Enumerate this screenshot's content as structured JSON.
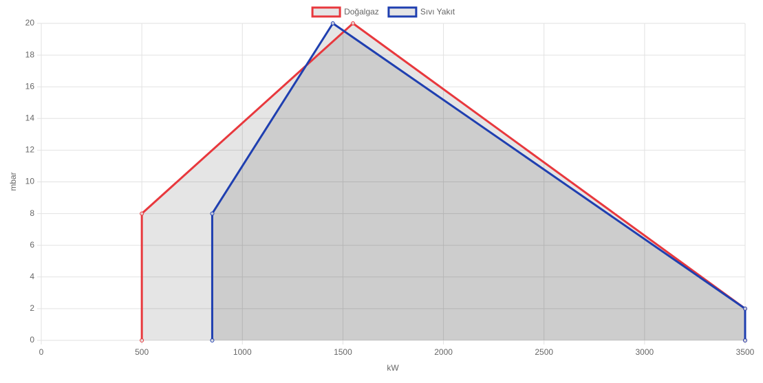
{
  "chart_data": {
    "type": "line",
    "x_label": "kW",
    "y_label": "mbar",
    "series": [
      {
        "name": "Doğalgaz",
        "color": "#e8383d",
        "fill": "rgba(0,0,0,0.1)",
        "x": [
          500,
          500,
          1550,
          3500,
          3500
        ],
        "values": [
          0,
          8,
          20,
          2,
          0
        ]
      },
      {
        "name": "Sıvı Yakıt",
        "color": "#1f3fb0",
        "fill": "rgba(0,0,0,0.1)",
        "x": [
          850,
          850,
          1450,
          3500,
          3500
        ],
        "values": [
          0,
          8,
          20,
          2,
          0
        ]
      }
    ],
    "xlim": [
      0,
      3500
    ],
    "xticks": [
      0,
      500,
      1000,
      1500,
      2000,
      2500,
      3000,
      3500
    ],
    "ylim": [
      0,
      20
    ],
    "yticks": [
      0,
      2,
      4,
      6,
      8,
      10,
      12,
      14,
      16,
      18,
      20
    ],
    "grid": true,
    "legend": "top"
  }
}
